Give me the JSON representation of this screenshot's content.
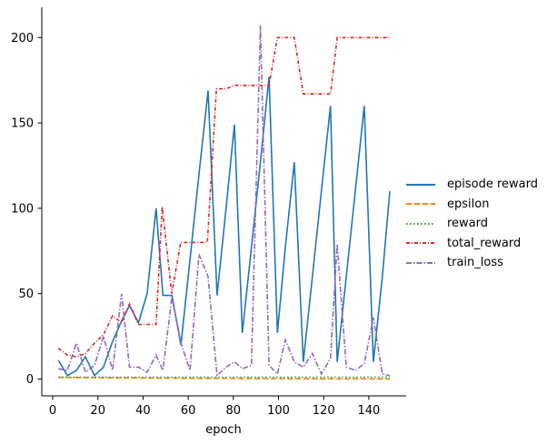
{
  "chart_data": {
    "type": "line",
    "title": "",
    "xlabel": "epoch",
    "ylabel": "",
    "xlim": [
      -4,
      156
    ],
    "ylim": [
      -10,
      217
    ],
    "xticks": [
      0,
      20,
      40,
      60,
      80,
      100,
      120,
      140
    ],
    "yticks": [
      0,
      50,
      100,
      150,
      200
    ],
    "grid": false,
    "legend_position": "right outside",
    "series": [
      {
        "name": "episode reward",
        "color": "#1f77b4",
        "dash": "",
        "x": [
          2.5,
          6.5,
          10.5,
          14.5,
          18.5,
          22.5,
          26.5,
          30.5,
          34,
          38,
          41.8,
          45.8,
          48.8,
          52.8,
          56.8,
          60.8,
          64.8,
          68.8,
          72.8,
          76.8,
          80.5,
          84,
          88,
          92,
          95.8,
          99.5,
          103,
          107,
          111,
          115,
          119,
          123,
          126,
          130,
          134,
          138,
          142,
          146,
          149.3
        ],
        "y": [
          11,
          2,
          5,
          13,
          2,
          7,
          22,
          34,
          43,
          33,
          50,
          100,
          49,
          49,
          20,
          70,
          120,
          169,
          49,
          100,
          149,
          27,
          77,
          127,
          177,
          27,
          77,
          127,
          10,
          60,
          110,
          160,
          10,
          60,
          110,
          160,
          10,
          60,
          110
        ]
      },
      {
        "name": "epsilon",
        "color": "#ff7f0e",
        "dash": "6,3",
        "x": [
          2.5,
          20,
          40,
          60,
          80,
          100,
          120,
          149.3
        ],
        "y": [
          1.0,
          0.8,
          0.6,
          0.4,
          0.3,
          0.2,
          0.1,
          0.05
        ]
      },
      {
        "name": "reward",
        "color": "#2ca02c",
        "dash": "1.5,2.5",
        "x": [
          2.5,
          149.3
        ],
        "y": [
          1,
          1
        ]
      },
      {
        "name": "total_reward",
        "color": "#d62728",
        "dash": "4,2,1,2",
        "x": [
          2.5,
          6.5,
          10.5,
          14.5,
          18.5,
          22.5,
          26.5,
          30.5,
          34,
          38,
          41.8,
          45.8,
          48.5,
          52.7,
          56.7,
          60.8,
          64.8,
          68.5,
          72.5,
          76.8,
          80.5,
          84,
          88,
          92,
          95.8,
          99.5,
          103,
          107,
          111,
          115,
          119,
          123,
          126,
          130,
          134,
          138,
          142,
          146,
          149.3
        ],
        "y": [
          18,
          14,
          13,
          15,
          21,
          26,
          37,
          33,
          44,
          32,
          32,
          32,
          101,
          50,
          80,
          80,
          80,
          80,
          170,
          170,
          172,
          172,
          172,
          172,
          172,
          200,
          200,
          200,
          167,
          167,
          167,
          167,
          200,
          200,
          200,
          200,
          200,
          200,
          200
        ]
      },
      {
        "name": "train_loss",
        "color": "#9467bd",
        "dash": "6,2,1.5,2",
        "x": [
          2.5,
          6.5,
          10.5,
          14.5,
          18.5,
          22.5,
          26.5,
          30.5,
          34,
          38,
          41.8,
          45.8,
          48.8,
          52.8,
          56.8,
          60.8,
          64.8,
          68.8,
          72.8,
          76.8,
          80.5,
          84,
          88,
          92,
          95.8,
          99.5,
          103,
          107,
          111,
          115,
          119,
          123,
          126,
          130,
          134,
          138,
          142,
          146,
          149.3
        ],
        "y": [
          6,
          5,
          21,
          4,
          8,
          25,
          5,
          50,
          7,
          7,
          4,
          14,
          5,
          48,
          21,
          5,
          73,
          60,
          2,
          7,
          10,
          6,
          8,
          207,
          8,
          3,
          23,
          10,
          7,
          15,
          3,
          12,
          79,
          7,
          5,
          9,
          36,
          3,
          2
        ]
      }
    ]
  },
  "axes": {
    "xlabel": "epoch",
    "xtick_labels": [
      "0",
      "20",
      "40",
      "60",
      "80",
      "100",
      "120",
      "140"
    ],
    "ytick_labels": [
      "0",
      "50",
      "100",
      "150",
      "200"
    ]
  },
  "legend": {
    "items": [
      {
        "label": "episode reward",
        "color": "#1f77b4",
        "dash": ""
      },
      {
        "label": "epsilon",
        "color": "#ff7f0e",
        "dash": "6,3"
      },
      {
        "label": "reward",
        "color": "#2ca02c",
        "dash": "1.5,2.5"
      },
      {
        "label": "total_reward",
        "color": "#d62728",
        "dash": "4,2,1,2"
      },
      {
        "label": "train_loss",
        "color": "#9467bd",
        "dash": "6,2,1.5,2"
      }
    ]
  }
}
